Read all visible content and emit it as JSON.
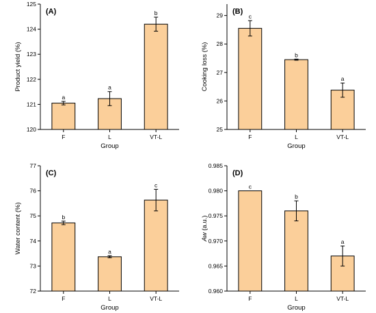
{
  "chart_data": [
    {
      "type": "bar",
      "panel_label": "(A)",
      "categories": [
        "F",
        "L",
        "VT-L"
      ],
      "values": [
        121.05,
        121.23,
        124.2
      ],
      "errors": [
        0.07,
        0.28,
        0.28
      ],
      "sig_letters": [
        "a",
        "a",
        "b"
      ],
      "xlabel": "Group",
      "ylabel": "Product yield (%)",
      "ylim": [
        120,
        125
      ],
      "yticks": [
        120,
        121,
        122,
        123,
        124,
        125
      ],
      "ytick_labels": [
        "120",
        "121",
        "122",
        "123",
        "124",
        "125"
      ],
      "bar_color": "#fbcf9a",
      "edge_color": "#000000"
    },
    {
      "type": "bar",
      "panel_label": "(B)",
      "categories": [
        "F",
        "L",
        "VT-L"
      ],
      "values": [
        28.55,
        27.45,
        26.38
      ],
      "errors": [
        0.27,
        0.02,
        0.25
      ],
      "sig_letters": [
        "c",
        "b",
        "a"
      ],
      "xlabel": "Group",
      "ylabel": "Cooking loss (%)",
      "ylim": [
        25,
        29.4
      ],
      "yticks": [
        25,
        26,
        27,
        28,
        29
      ],
      "ytick_labels": [
        "25",
        "26",
        "27",
        "28",
        "29"
      ],
      "bar_color": "#fbcf9a",
      "edge_color": "#000000"
    },
    {
      "type": "bar",
      "panel_label": "(C)",
      "categories": [
        "F",
        "L",
        "VT-L"
      ],
      "values": [
        74.72,
        73.37,
        75.63
      ],
      "errors": [
        0.07,
        0.04,
        0.43
      ],
      "sig_letters": [
        "b",
        "a",
        "c"
      ],
      "xlabel": "Group",
      "ylabel": "Water content (%)",
      "ylim": [
        72,
        77
      ],
      "yticks": [
        72,
        73,
        74,
        75,
        76,
        77
      ],
      "ytick_labels": [
        "72",
        "73",
        "74",
        "75",
        "76",
        "77"
      ],
      "bar_color": "#fbcf9a",
      "edge_color": "#000000"
    },
    {
      "type": "bar",
      "panel_label": "(D)",
      "categories": [
        "F",
        "L",
        "VT-L"
      ],
      "values": [
        0.98,
        0.976,
        0.967
      ],
      "errors": [
        0.0,
        0.002,
        0.002
      ],
      "sig_letters": [
        "c",
        "b",
        "a"
      ],
      "xlabel": "Group",
      "ylabel_main": "Aw",
      "ylabel_suffix": " (a.u.)",
      "ylim": [
        0.96,
        0.985
      ],
      "yticks": [
        0.96,
        0.965,
        0.97,
        0.975,
        0.98,
        0.985
      ],
      "ytick_labels": [
        "0.960",
        "0.965",
        "0.970",
        "0.975",
        "0.980",
        "0.985"
      ],
      "bar_color": "#fbcf9a",
      "edge_color": "#000000"
    }
  ]
}
